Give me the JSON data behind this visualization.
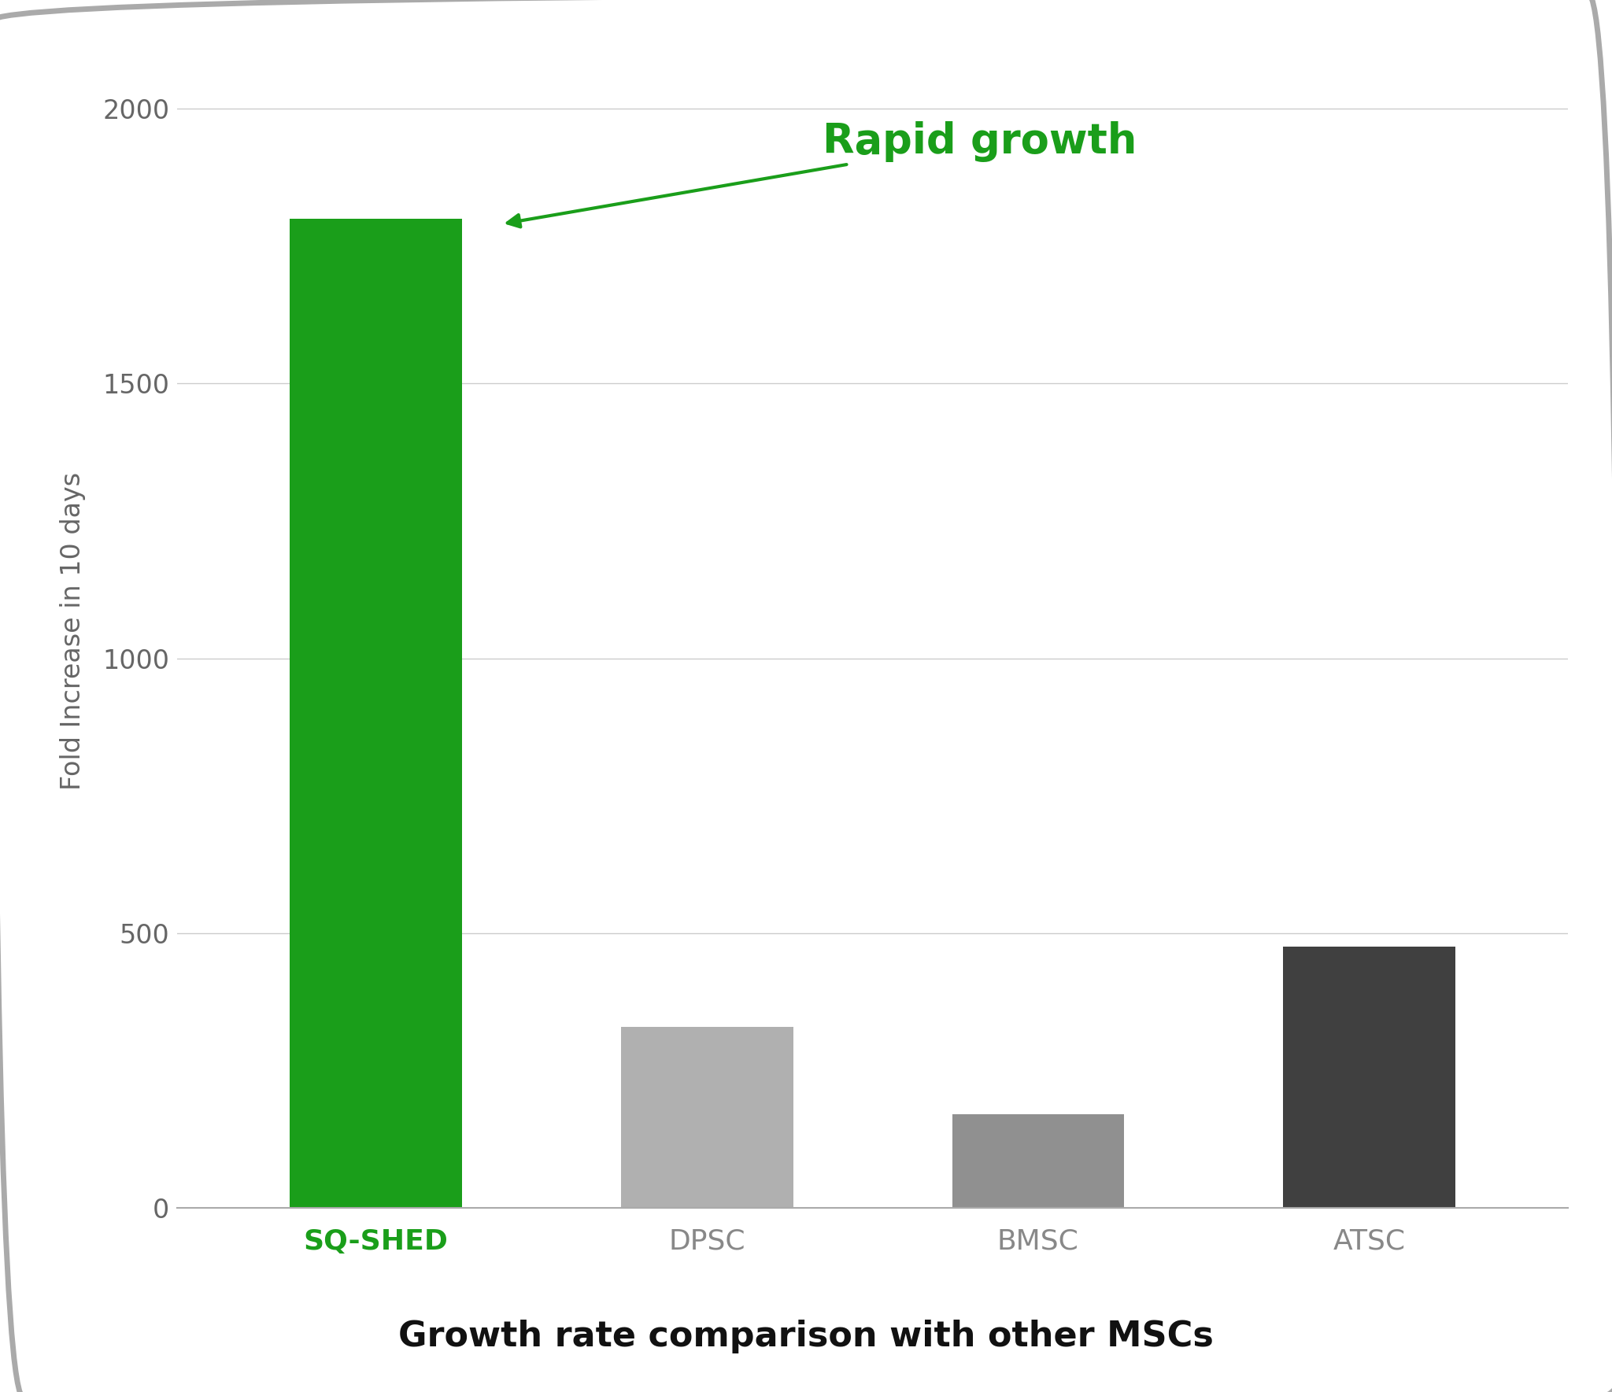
{
  "categories": [
    "SQ-SHED",
    "DPSC",
    "BMSC",
    "ATSC"
  ],
  "values": [
    1800,
    330,
    170,
    475
  ],
  "bar_colors": [
    "#1a9e1a",
    "#b0b0b0",
    "#909090",
    "#404040"
  ],
  "title": "Growth rate comparison with other MSCs",
  "ylabel": "Fold Increase in 10 days",
  "ylim": [
    0,
    2100
  ],
  "yticks": [
    0,
    500,
    1000,
    1500,
    2000
  ],
  "annotation_text": "Rapid growth",
  "annotation_color": "#1a9e1a",
  "annotation_fontsize": 38,
  "title_fontsize": 32,
  "ylabel_fontsize": 24,
  "tick_fontsize": 24,
  "xlabel_fontsize": 26,
  "background_color": "#ffffff",
  "border_color": "#999999",
  "grid_color": "#cccccc",
  "sq_shed_label_color": "#1a9e1a",
  "other_label_color": "#888888"
}
